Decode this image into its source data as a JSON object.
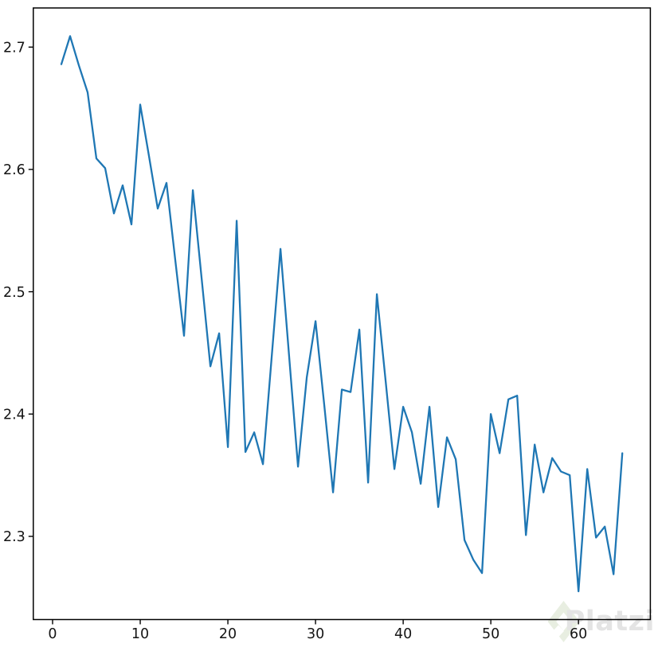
{
  "figure": {
    "background": "#ffffff"
  },
  "watermark": {
    "text": "Platzi",
    "logo_color": "#e8eee1",
    "text_color": "#e4e4e4"
  },
  "chart_data": {
    "type": "line",
    "title": "",
    "xlabel": "",
    "ylabel": "",
    "grid": false,
    "legend": null,
    "line_color": "#1f77b4",
    "axis_color": "#000000",
    "x": [
      1,
      2,
      3,
      4,
      5,
      6,
      7,
      8,
      9,
      10,
      11,
      12,
      13,
      14,
      15,
      16,
      17,
      18,
      19,
      20,
      21,
      22,
      23,
      24,
      25,
      26,
      27,
      28,
      29,
      30,
      31,
      32,
      33,
      34,
      35,
      36,
      37,
      38,
      39,
      40,
      41,
      42,
      43,
      44,
      45,
      46,
      47,
      48,
      49,
      50,
      51,
      52,
      53,
      54,
      55,
      56,
      57,
      58,
      59,
      60,
      61,
      62,
      63,
      64,
      65
    ],
    "values": [
      2.686,
      2.709,
      2.685,
      2.663,
      2.609,
      2.601,
      2.564,
      2.587,
      2.555,
      2.653,
      2.611,
      2.568,
      2.589,
      2.526,
      2.464,
      2.583,
      2.511,
      2.439,
      2.466,
      2.373,
      2.558,
      2.369,
      2.385,
      2.359,
      2.447,
      2.535,
      2.446,
      2.357,
      2.43,
      2.476,
      2.407,
      2.336,
      2.42,
      2.418,
      2.469,
      2.344,
      2.498,
      2.427,
      2.355,
      2.406,
      2.385,
      2.343,
      2.406,
      2.324,
      2.381,
      2.363,
      2.297,
      2.281,
      2.27,
      2.4,
      2.368,
      2.412,
      2.415,
      2.301,
      2.375,
      2.336,
      2.364,
      2.353,
      2.35,
      2.255,
      2.355,
      2.299,
      2.308,
      2.269,
      2.368
    ],
    "x_ticks": {
      "values": [
        0,
        10,
        20,
        30,
        40,
        50,
        60
      ],
      "labels": [
        "0",
        "10",
        "20",
        "30",
        "40",
        "50",
        "60"
      ]
    },
    "y_ticks": {
      "values": [
        2.3,
        2.4,
        2.5,
        2.6,
        2.7
      ],
      "labels": [
        "2.3",
        "2.4",
        "2.5",
        "2.6",
        "2.7"
      ]
    },
    "xlim": [
      -2.2,
      68.2
    ],
    "ylim": [
      2.232,
      2.732
    ]
  }
}
